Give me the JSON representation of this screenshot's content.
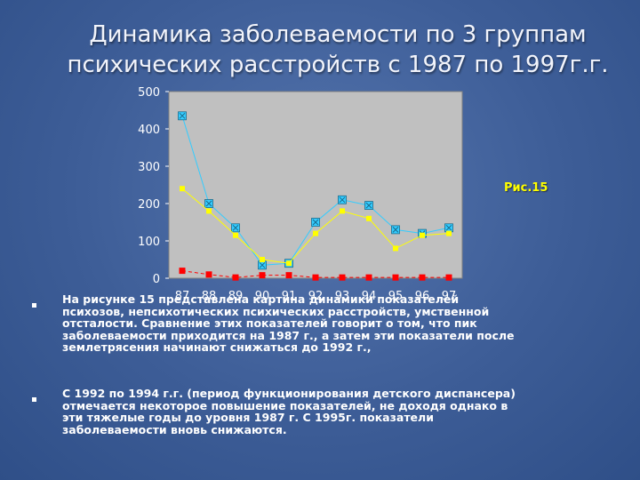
{
  "slide": {
    "title_line1": "Динамика заболеваемости по 3 группам",
    "title_line2": "психических расстройств с 1987 по 1997г.г.",
    "figure_label": "Рис.15",
    "bullets": [
      "На рисунке 15 представлена картина динамики показателей\nпсихозов, непсихотических психических расстройств, умственной\nотсталости. Сравнение этих показателей говорит о том, что пик\nзаболеваемости приходится на 1987 г., а затем эти показатели после\nземлетрясения начинают снижаться до 1992 г.,",
      "С 1992 по 1994 г.г. (период функционирования детского диспансера)\nотмечается некоторое повышение показателей, не доходя  однако в\nэти тяжелые годы до уровня 1987 г. С 1995г. показатели\nзаболеваемости вновь снижаются."
    ]
  },
  "chart_data": {
    "type": "line",
    "categories": [
      "87",
      "88",
      "89",
      "90",
      "91",
      "92",
      "93",
      "94",
      "95",
      "96",
      "97"
    ],
    "ylim": [
      0,
      500
    ],
    "yticks": [
      "0",
      "100",
      "200",
      "300",
      "400",
      "500"
    ],
    "grid": false,
    "legend": "none",
    "plot_background": "#c0c0c0",
    "series": [
      {
        "color": "#33ccff",
        "marker": "square-x",
        "values": [
          435,
          200,
          135,
          35,
          40,
          150,
          210,
          195,
          130,
          120,
          135
        ]
      },
      {
        "color": "#ffff00",
        "marker": "square",
        "values": [
          240,
          180,
          115,
          50,
          40,
          120,
          180,
          160,
          80,
          115,
          120
        ]
      },
      {
        "color": "#ff0000",
        "marker": "square",
        "values": [
          20,
          10,
          2,
          8,
          8,
          2,
          2,
          2,
          2,
          2,
          2
        ]
      }
    ]
  }
}
